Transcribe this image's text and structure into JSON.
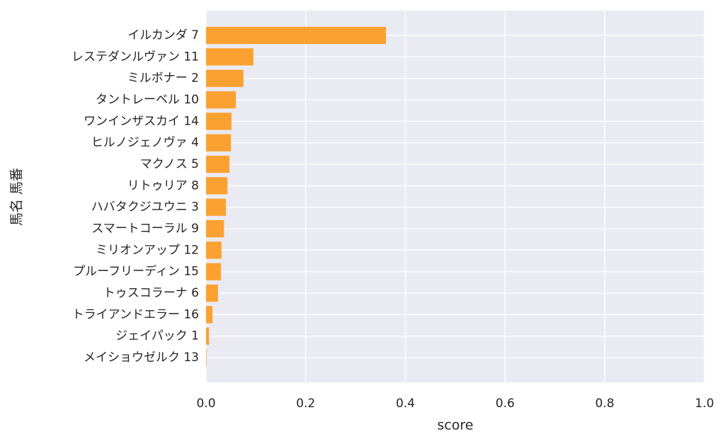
{
  "chart_data": {
    "type": "barh",
    "categories": [
      "イルカンダ 7",
      "レステダンルヴァン 11",
      "ミルボナー 2",
      "タントレーベル 10",
      "ワンインザスカイ 14",
      "ヒルノジェノヴァ 4",
      "マクノス 5",
      "リトゥリア 8",
      "ハバタクジユウニ 3",
      "スマートコーラル 9",
      "ミリオンアップ 12",
      "プルーフリーディン 15",
      "トゥスコラーナ 6",
      "トライアンドエラー 16",
      "ジェイパック 1",
      "メイショウゼルク 13"
    ],
    "values": [
      0.361,
      0.095,
      0.075,
      0.06,
      0.051,
      0.05,
      0.047,
      0.043,
      0.04,
      0.036,
      0.031,
      0.03,
      0.024,
      0.013,
      0.006,
      0.001
    ],
    "color": "#fba131",
    "xlabel": "score",
    "ylabel": "馬名 馬番",
    "xlim": [
      0,
      1
    ],
    "xticks": [
      {
        "value": 0,
        "label": "0.0"
      },
      0.2,
      0.4,
      0.6,
      0.8,
      {
        "value": 1,
        "label": "1.0"
      }
    ],
    "grid": true
  }
}
